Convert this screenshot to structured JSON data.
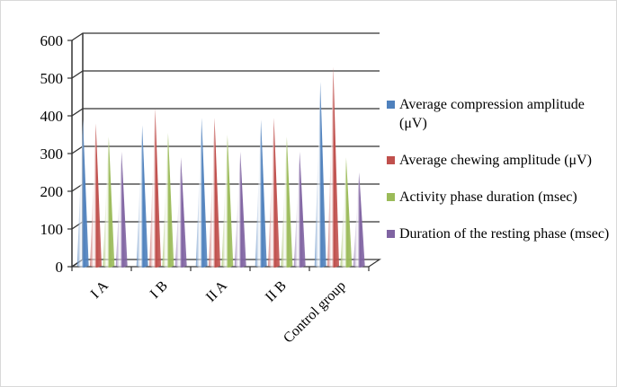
{
  "chart_data": {
    "type": "bar",
    "style": "3d-cone",
    "categories": [
      "I A",
      "I B",
      "II A",
      "II B",
      "Control group"
    ],
    "ylim": [
      0,
      600
    ],
    "yticks": [
      0,
      100,
      200,
      300,
      400,
      500,
      600
    ],
    "grid": true,
    "legend_position": "right",
    "xlabel": "",
    "ylabel": "",
    "title": "",
    "series": [
      {
        "name": "Average compression amplitude (μV)",
        "color": "#4f81bd",
        "values": [
          390,
          375,
          395,
          390,
          490
        ]
      },
      {
        "name": "Average chewing amplitude (μV)",
        "color": "#c0504d",
        "values": [
          380,
          420,
          395,
          395,
          530
        ]
      },
      {
        "name": "Activity phase duration (msec)",
        "color": "#9bbb59",
        "values": [
          345,
          355,
          350,
          345,
          290
        ]
      },
      {
        "name": "Duration of the resting phase (msec)",
        "color": "#8064a2",
        "values": [
          305,
          290,
          305,
          305,
          250
        ]
      }
    ]
  }
}
